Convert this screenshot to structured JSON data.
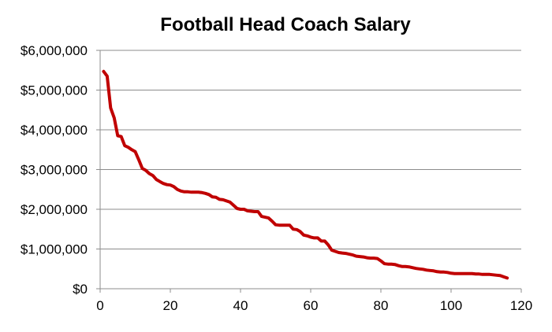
{
  "chart_data": {
    "type": "line",
    "title": "Football Head Coach Salary",
    "xlabel": "",
    "ylabel": "",
    "xlim": [
      0,
      120
    ],
    "ylim": [
      0,
      6000000
    ],
    "x_ticks": [
      0,
      20,
      40,
      60,
      80,
      100,
      120
    ],
    "x_tick_labels": [
      "0",
      "20",
      "40",
      "60",
      "80",
      "100",
      "120"
    ],
    "y_ticks": [
      0,
      1000000,
      2000000,
      3000000,
      4000000,
      5000000,
      6000000
    ],
    "y_tick_labels": [
      "$0",
      "$1,000,000",
      "$2,000,000",
      "$3,000,000",
      "$4,000,000",
      "$5,000,000",
      "$6,000,000"
    ],
    "grid": {
      "horizontal": true,
      "vertical": false
    },
    "legend": "none",
    "line_color": "#c00000",
    "series": [
      {
        "x": [
          1,
          2,
          3,
          4,
          5,
          6,
          7,
          8,
          9,
          10,
          11,
          12,
          13,
          14,
          15,
          16,
          17,
          18,
          19,
          20,
          21,
          22,
          23,
          24,
          25,
          26,
          27,
          28,
          29,
          30,
          31,
          32,
          33,
          34,
          35,
          36,
          37,
          38,
          39,
          40,
          41,
          42,
          43,
          44,
          45,
          46,
          47,
          48,
          49,
          50,
          51,
          52,
          53,
          54,
          55,
          56,
          57,
          58,
          59,
          60,
          61,
          62,
          63,
          64,
          65,
          66,
          67,
          68,
          69,
          70,
          71,
          72,
          73,
          74,
          75,
          76,
          77,
          78,
          79,
          80,
          81,
          82,
          83,
          84,
          85,
          86,
          87,
          88,
          89,
          90,
          91,
          92,
          93,
          94,
          95,
          96,
          97,
          98,
          99,
          100,
          101,
          102,
          103,
          104,
          105,
          106,
          107,
          108,
          109,
          110,
          111,
          112,
          113,
          114,
          115,
          116
        ],
        "values": [
          5470000,
          5350000,
          4550000,
          4300000,
          3850000,
          3830000,
          3600000,
          3560000,
          3500000,
          3450000,
          3250000,
          3030000,
          2980000,
          2900000,
          2850000,
          2750000,
          2700000,
          2650000,
          2620000,
          2610000,
          2570000,
          2500000,
          2460000,
          2440000,
          2440000,
          2430000,
          2430000,
          2430000,
          2420000,
          2400000,
          2370000,
          2310000,
          2300000,
          2250000,
          2240000,
          2210000,
          2180000,
          2100000,
          2020000,
          2000000,
          2000000,
          1960000,
          1950000,
          1940000,
          1940000,
          1820000,
          1800000,
          1780000,
          1700000,
          1610000,
          1600000,
          1600000,
          1600000,
          1600000,
          1500000,
          1490000,
          1440000,
          1350000,
          1330000,
          1300000,
          1280000,
          1280000,
          1200000,
          1200000,
          1100000,
          970000,
          940000,
          910000,
          900000,
          890000,
          870000,
          850000,
          820000,
          810000,
          800000,
          780000,
          770000,
          770000,
          760000,
          700000,
          630000,
          620000,
          620000,
          610000,
          580000,
          560000,
          560000,
          550000,
          530000,
          510000,
          500000,
          490000,
          470000,
          460000,
          450000,
          430000,
          420000,
          420000,
          410000,
          390000,
          380000,
          380000,
          380000,
          380000,
          380000,
          380000,
          370000,
          370000,
          360000,
          360000,
          360000,
          350000,
          340000,
          330000,
          300000,
          270000
        ]
      }
    ]
  }
}
